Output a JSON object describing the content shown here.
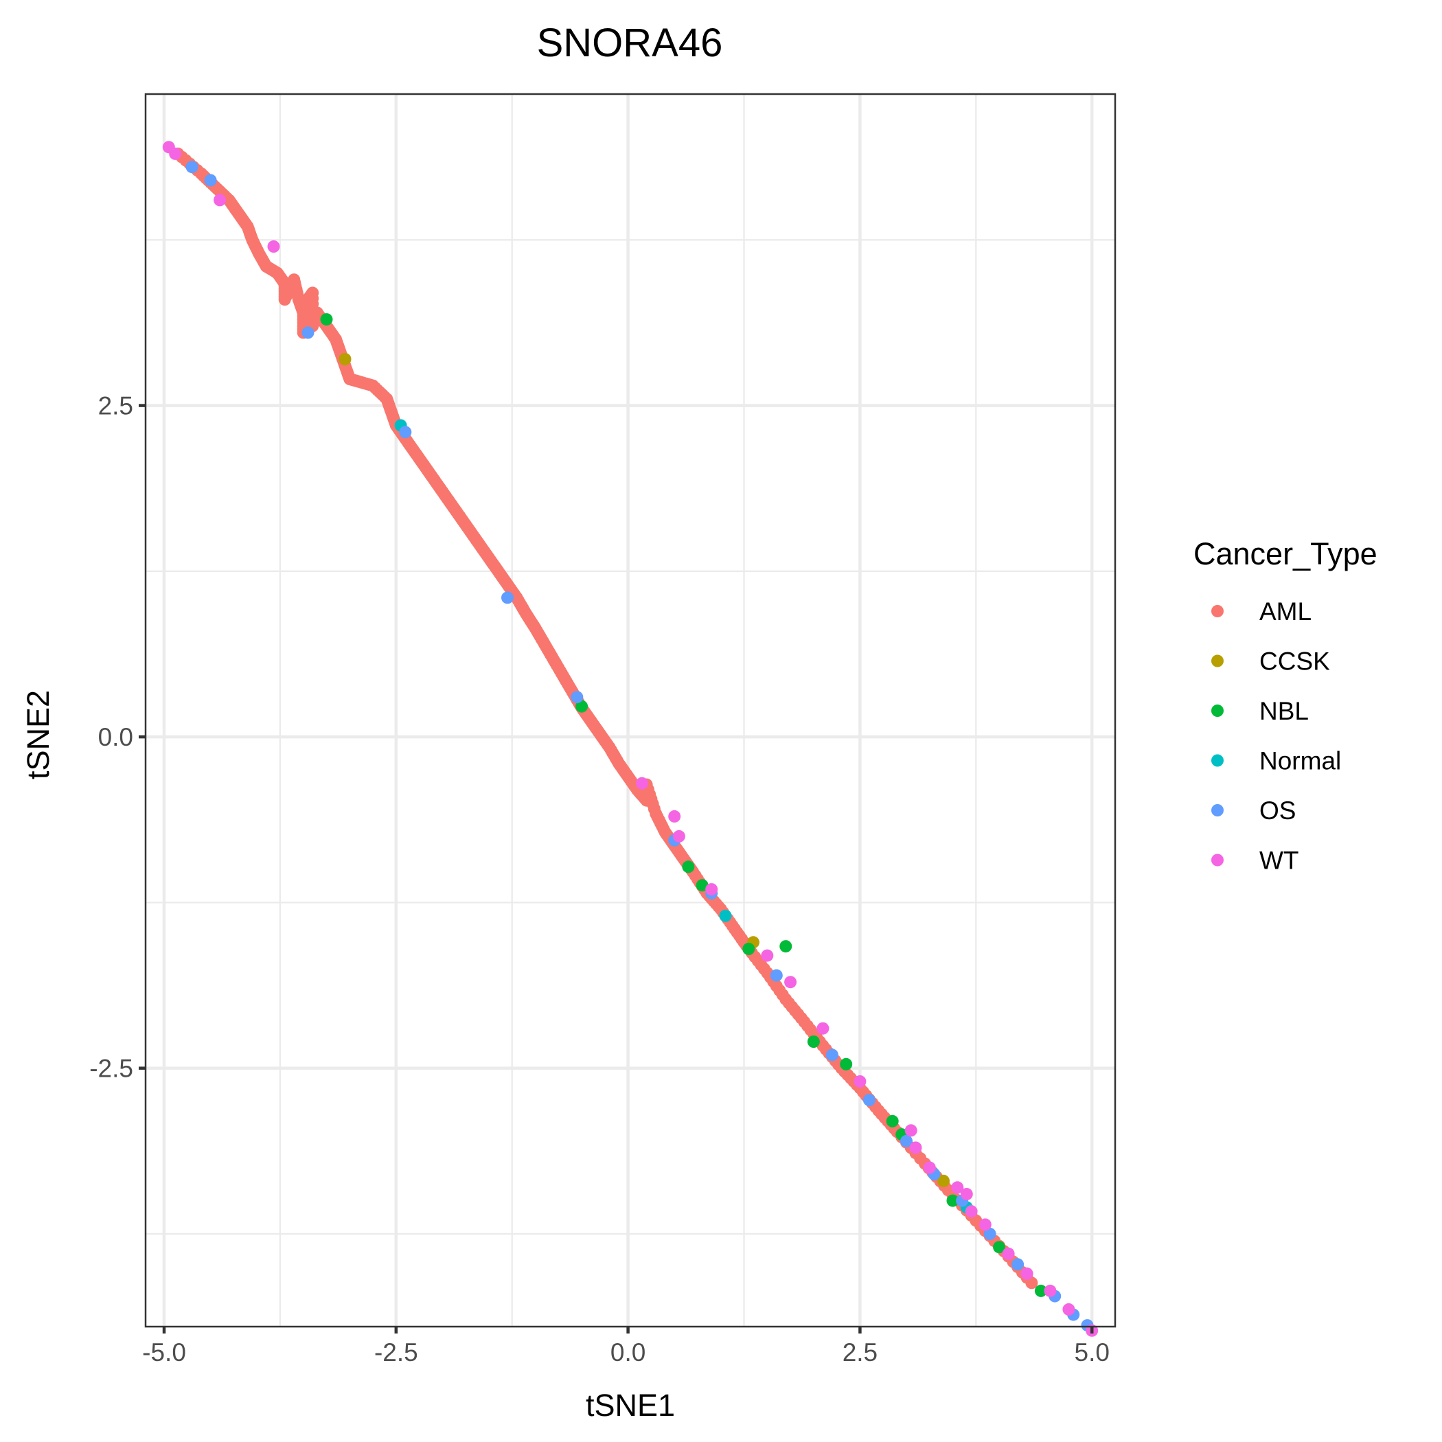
{
  "chart_data": {
    "type": "scatter",
    "title": "SNORA46",
    "xlabel": "tSNE1",
    "ylabel": "tSNE2",
    "xlim": [
      -5.2,
      5.25
    ],
    "ylim": [
      -4.45,
      4.85
    ],
    "x_ticks": [
      -5.0,
      -2.5,
      0.0,
      2.5,
      5.0
    ],
    "x_tick_labels": [
      "-5.0",
      "-2.5",
      "0.0",
      "2.5",
      "5.0"
    ],
    "y_ticks": [
      2.5,
      0.0,
      -2.5
    ],
    "y_tick_labels": [
      "2.5",
      "0.0",
      "-2.5"
    ],
    "grid": true,
    "legend": {
      "title": "Cancer_Type",
      "placement": "right",
      "entries": [
        {
          "label": "AML",
          "color": "#F8766D"
        },
        {
          "label": "CCSK",
          "color": "#B79F00"
        },
        {
          "label": "NBL",
          "color": "#00BA38"
        },
        {
          "label": "Normal",
          "color": "#00BFC4"
        },
        {
          "label": "OS",
          "color": "#619CFF"
        },
        {
          "label": "WT",
          "color": "#F564E3"
        }
      ]
    },
    "series": [
      {
        "name": "AML",
        "color": "#F8766D",
        "points": [
          [
            -4.85,
            4.4
          ],
          [
            -4.6,
            4.25
          ],
          [
            -4.45,
            4.15
          ],
          [
            -4.3,
            4.05
          ],
          [
            -4.2,
            3.95
          ],
          [
            -4.1,
            3.85
          ],
          [
            -4.05,
            3.75
          ],
          [
            -3.98,
            3.65
          ],
          [
            -3.9,
            3.55
          ],
          [
            -3.78,
            3.5
          ],
          [
            -3.7,
            3.42
          ],
          [
            -3.6,
            3.45
          ],
          [
            -3.55,
            3.3
          ],
          [
            -3.7,
            3.3
          ],
          [
            -3.45,
            3.3
          ],
          [
            -3.4,
            3.35
          ],
          [
            -3.35,
            3.2
          ],
          [
            -3.5,
            3.2
          ],
          [
            -3.5,
            3.05
          ],
          [
            -3.4,
            3.1
          ],
          [
            -3.25,
            3.1
          ],
          [
            -3.15,
            3.0
          ],
          [
            -3.1,
            2.9
          ],
          [
            -3.05,
            2.8
          ],
          [
            -3.0,
            2.7
          ],
          [
            -2.9,
            2.68
          ],
          [
            -2.75,
            2.65
          ],
          [
            -2.6,
            2.55
          ],
          [
            -2.55,
            2.45
          ],
          [
            -2.5,
            2.35
          ],
          [
            -2.4,
            2.25
          ],
          [
            -2.3,
            2.15
          ],
          [
            -2.2,
            2.05
          ],
          [
            -2.1,
            1.95
          ],
          [
            -2.0,
            1.85
          ],
          [
            -1.9,
            1.75
          ],
          [
            -1.8,
            1.65
          ],
          [
            -1.7,
            1.55
          ],
          [
            -1.6,
            1.45
          ],
          [
            -1.5,
            1.35
          ],
          [
            -1.4,
            1.25
          ],
          [
            -1.3,
            1.15
          ],
          [
            -1.2,
            1.05
          ],
          [
            -1.1,
            0.93
          ],
          [
            -1.0,
            0.82
          ],
          [
            -0.9,
            0.7
          ],
          [
            -0.8,
            0.58
          ],
          [
            -0.7,
            0.46
          ],
          [
            -0.6,
            0.34
          ],
          [
            -0.5,
            0.22
          ],
          [
            -0.4,
            0.12
          ],
          [
            -0.3,
            0.02
          ],
          [
            -0.2,
            -0.08
          ],
          [
            -0.1,
            -0.2
          ],
          [
            0.0,
            -0.3
          ],
          [
            0.1,
            -0.4
          ],
          [
            0.2,
            -0.48
          ],
          [
            0.3,
            -0.58
          ],
          [
            0.4,
            -0.72
          ],
          [
            0.5,
            -0.82
          ],
          [
            0.6,
            -0.92
          ],
          [
            0.7,
            -1.02
          ],
          [
            0.85,
            -1.18
          ],
          [
            1.0,
            -1.3
          ],
          [
            1.15,
            -1.45
          ],
          [
            1.3,
            -1.6
          ],
          [
            1.5,
            -1.78
          ],
          [
            1.7,
            -1.98
          ],
          [
            1.9,
            -2.15
          ],
          [
            2.1,
            -2.33
          ],
          [
            2.3,
            -2.5
          ],
          [
            2.5,
            -2.65
          ],
          [
            2.7,
            -2.82
          ],
          [
            2.9,
            -2.98
          ],
          [
            3.2,
            -3.22
          ],
          [
            3.45,
            -3.42
          ],
          [
            3.75,
            -3.65
          ],
          [
            4.05,
            -3.88
          ],
          [
            4.35,
            -4.12
          ],
          [
            0.2,
            -0.36
          ]
        ]
      },
      {
        "name": "CCSK",
        "color": "#B79F00",
        "points": [
          [
            -3.05,
            2.85
          ],
          [
            1.35,
            -1.55
          ],
          [
            3.4,
            -3.35
          ]
        ]
      },
      {
        "name": "NBL",
        "color": "#00BA38",
        "points": [
          [
            -3.25,
            3.15
          ],
          [
            -0.5,
            0.23
          ],
          [
            0.65,
            -0.98
          ],
          [
            0.8,
            -1.12
          ],
          [
            1.3,
            -1.6
          ],
          [
            1.7,
            -1.58
          ],
          [
            2.0,
            -2.3
          ],
          [
            2.35,
            -2.47
          ],
          [
            2.85,
            -2.9
          ],
          [
            2.95,
            -3.0
          ],
          [
            3.5,
            -3.5
          ],
          [
            4.0,
            -3.85
          ],
          [
            4.45,
            -4.18
          ]
        ]
      },
      {
        "name": "Normal",
        "color": "#00BFC4",
        "points": [
          [
            -2.45,
            2.35
          ],
          [
            1.05,
            -1.35
          ],
          [
            3.65,
            -3.55
          ]
        ]
      },
      {
        "name": "OS",
        "color": "#619CFF",
        "points": [
          [
            -4.7,
            4.3
          ],
          [
            -4.5,
            4.2
          ],
          [
            -3.45,
            3.05
          ],
          [
            -2.4,
            2.3
          ],
          [
            -1.3,
            1.05
          ],
          [
            -0.55,
            0.3
          ],
          [
            0.5,
            -0.78
          ],
          [
            0.9,
            -1.18
          ],
          [
            1.6,
            -1.8
          ],
          [
            2.2,
            -2.4
          ],
          [
            2.6,
            -2.74
          ],
          [
            3.0,
            -3.05
          ],
          [
            3.3,
            -3.3
          ],
          [
            3.6,
            -3.5
          ],
          [
            3.9,
            -3.75
          ],
          [
            4.2,
            -3.98
          ],
          [
            4.6,
            -4.22
          ],
          [
            4.8,
            -4.36
          ],
          [
            4.95,
            -4.44
          ]
        ]
      },
      {
        "name": "WT",
        "color": "#F564E3",
        "points": [
          [
            -4.95,
            4.45
          ],
          [
            -4.4,
            4.05
          ],
          [
            -3.82,
            3.7
          ],
          [
            0.15,
            -0.35
          ],
          [
            0.5,
            -0.6
          ],
          [
            0.55,
            -0.75
          ],
          [
            0.9,
            -1.15
          ],
          [
            1.5,
            -1.65
          ],
          [
            1.75,
            -1.85
          ],
          [
            2.1,
            -2.2
          ],
          [
            2.5,
            -2.6
          ],
          [
            3.05,
            -2.97
          ],
          [
            3.1,
            -3.1
          ],
          [
            3.25,
            -3.25
          ],
          [
            3.55,
            -3.4
          ],
          [
            3.65,
            -3.45
          ],
          [
            3.7,
            -3.58
          ],
          [
            3.85,
            -3.68
          ],
          [
            4.1,
            -3.9
          ],
          [
            4.3,
            -4.05
          ],
          [
            4.55,
            -4.18
          ],
          [
            4.75,
            -4.32
          ],
          [
            5.0,
            -4.48
          ],
          [
            -4.88,
            4.4
          ]
        ]
      }
    ]
  }
}
